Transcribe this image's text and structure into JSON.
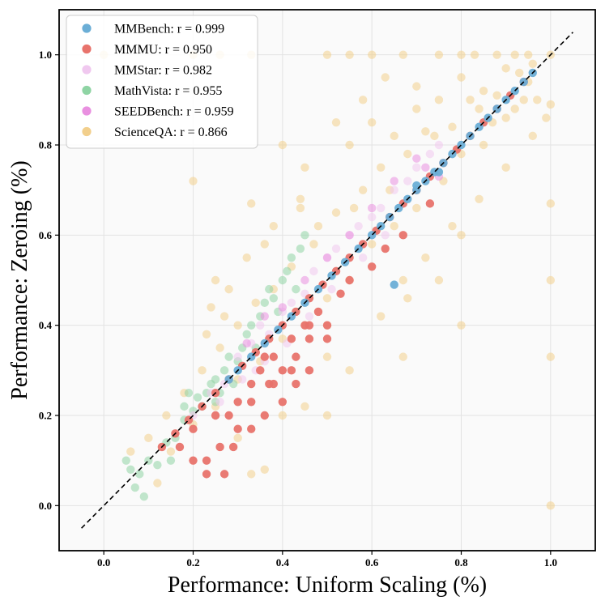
{
  "chart_data": {
    "type": "scatter",
    "title": "",
    "xlabel": "Performance: Uniform Scaling (%)",
    "ylabel": "Performance: Zeroing (%)",
    "xlim": [
      -0.1,
      1.1
    ],
    "ylim": [
      -0.1,
      1.1
    ],
    "xticks": [
      "0.0",
      "0.2",
      "0.4",
      "0.6",
      "0.8",
      "1.0"
    ],
    "yticks": [
      "0.0",
      "0.2",
      "0.4",
      "0.6",
      "0.8",
      "1.0"
    ],
    "grid": true,
    "legend_position": "top-left",
    "reference_line": {
      "style": "dashed",
      "color": "#000000",
      "x": [
        -0.05,
        1.05
      ],
      "y": [
        -0.05,
        1.05
      ]
    },
    "series": [
      {
        "name": "MMBench",
        "label": "MMBench: r = 0.999",
        "r": 0.999,
        "color": "#6baed6",
        "points": [
          [
            0.28,
            0.28
          ],
          [
            0.3,
            0.3
          ],
          [
            0.33,
            0.33
          ],
          [
            0.36,
            0.36
          ],
          [
            0.39,
            0.39
          ],
          [
            0.42,
            0.42
          ],
          [
            0.45,
            0.45
          ],
          [
            0.48,
            0.48
          ],
          [
            0.51,
            0.51
          ],
          [
            0.54,
            0.54
          ],
          [
            0.57,
            0.57
          ],
          [
            0.6,
            0.6
          ],
          [
            0.62,
            0.62
          ],
          [
            0.64,
            0.64
          ],
          [
            0.66,
            0.66
          ],
          [
            0.68,
            0.68
          ],
          [
            0.7,
            0.7
          ],
          [
            0.72,
            0.72
          ],
          [
            0.74,
            0.74
          ],
          [
            0.76,
            0.76
          ],
          [
            0.78,
            0.78
          ],
          [
            0.8,
            0.8
          ],
          [
            0.82,
            0.82
          ],
          [
            0.84,
            0.84
          ],
          [
            0.86,
            0.86
          ],
          [
            0.88,
            0.88
          ],
          [
            0.9,
            0.9
          ],
          [
            0.92,
            0.92
          ],
          [
            0.94,
            0.94
          ],
          [
            0.96,
            0.96
          ],
          [
            0.65,
            0.49
          ],
          [
            0.7,
            0.71
          ],
          [
            0.75,
            0.74
          ]
        ]
      },
      {
        "name": "MMMU",
        "label": "MMMU: r = 0.950",
        "r": 0.95,
        "color": "#e8736c",
        "points": [
          [
            0.13,
            0.13
          ],
          [
            0.16,
            0.16
          ],
          [
            0.19,
            0.19
          ],
          [
            0.22,
            0.22
          ],
          [
            0.25,
            0.25
          ],
          [
            0.28,
            0.28
          ],
          [
            0.31,
            0.31
          ],
          [
            0.34,
            0.34
          ],
          [
            0.37,
            0.37
          ],
          [
            0.4,
            0.4
          ],
          [
            0.43,
            0.43
          ],
          [
            0.46,
            0.46
          ],
          [
            0.49,
            0.49
          ],
          [
            0.52,
            0.52
          ],
          [
            0.55,
            0.55
          ],
          [
            0.58,
            0.58
          ],
          [
            0.61,
            0.61
          ],
          [
            0.64,
            0.64
          ],
          [
            0.67,
            0.67
          ],
          [
            0.7,
            0.7
          ],
          [
            0.73,
            0.73
          ],
          [
            0.76,
            0.76
          ],
          [
            0.79,
            0.79
          ],
          [
            0.82,
            0.82
          ],
          [
            0.85,
            0.85
          ],
          [
            0.88,
            0.88
          ],
          [
            0.91,
            0.91
          ],
          [
            0.94,
            0.94
          ],
          [
            0.17,
            0.13
          ],
          [
            0.2,
            0.17
          ],
          [
            0.23,
            0.1
          ],
          [
            0.25,
            0.2
          ],
          [
            0.26,
            0.13
          ],
          [
            0.28,
            0.2
          ],
          [
            0.3,
            0.23
          ],
          [
            0.3,
            0.17
          ],
          [
            0.33,
            0.23
          ],
          [
            0.33,
            0.27
          ],
          [
            0.33,
            0.17
          ],
          [
            0.35,
            0.3
          ],
          [
            0.36,
            0.2
          ],
          [
            0.37,
            0.27
          ],
          [
            0.38,
            0.33
          ],
          [
            0.4,
            0.3
          ],
          [
            0.4,
            0.23
          ],
          [
            0.42,
            0.37
          ],
          [
            0.43,
            0.33
          ],
          [
            0.43,
            0.27
          ],
          [
            0.45,
            0.4
          ],
          [
            0.46,
            0.3
          ],
          [
            0.46,
            0.37
          ],
          [
            0.48,
            0.43
          ],
          [
            0.5,
            0.4
          ],
          [
            0.5,
            0.37
          ],
          [
            0.53,
            0.47
          ],
          [
            0.55,
            0.5
          ],
          [
            0.6,
            0.53
          ],
          [
            0.63,
            0.57
          ],
          [
            0.67,
            0.6
          ],
          [
            0.73,
            0.67
          ],
          [
            0.29,
            0.13
          ],
          [
            0.23,
            0.07
          ],
          [
            0.27,
            0.07
          ],
          [
            0.2,
            0.1
          ],
          [
            0.38,
            0.27
          ],
          [
            0.42,
            0.3
          ],
          [
            0.46,
            0.4
          ],
          [
            0.36,
            0.33
          ]
        ]
      },
      {
        "name": "MMStar",
        "label": "MMStar: r = 0.982",
        "r": 0.982,
        "color": "#f0c8ef",
        "points": [
          [
            0.2,
            0.2
          ],
          [
            0.24,
            0.25
          ],
          [
            0.27,
            0.27
          ],
          [
            0.3,
            0.33
          ],
          [
            0.33,
            0.36
          ],
          [
            0.35,
            0.4
          ],
          [
            0.37,
            0.38
          ],
          [
            0.4,
            0.43
          ],
          [
            0.42,
            0.45
          ],
          [
            0.45,
            0.47
          ],
          [
            0.47,
            0.52
          ],
          [
            0.5,
            0.55
          ],
          [
            0.52,
            0.57
          ],
          [
            0.55,
            0.6
          ],
          [
            0.57,
            0.62
          ],
          [
            0.6,
            0.64
          ],
          [
            0.62,
            0.66
          ],
          [
            0.65,
            0.7
          ],
          [
            0.68,
            0.72
          ],
          [
            0.7,
            0.75
          ],
          [
            0.73,
            0.78
          ],
          [
            0.75,
            0.8
          ],
          [
            0.31,
            0.28
          ],
          [
            0.36,
            0.32
          ],
          [
            0.41,
            0.36
          ],
          [
            0.46,
            0.42
          ],
          [
            0.51,
            0.48
          ],
          [
            0.58,
            0.55
          ],
          [
            0.63,
            0.6
          ],
          [
            0.26,
            0.23
          ],
          [
            0.34,
            0.3
          ]
        ]
      },
      {
        "name": "MathVista",
        "label": "MathVista: r = 0.955",
        "r": 0.955,
        "color": "#8fd4a4",
        "points": [
          [
            0.08,
            0.07
          ],
          [
            0.1,
            0.1
          ],
          [
            0.12,
            0.09
          ],
          [
            0.14,
            0.14
          ],
          [
            0.16,
            0.15
          ],
          [
            0.18,
            0.19
          ],
          [
            0.2,
            0.21
          ],
          [
            0.21,
            0.24
          ],
          [
            0.22,
            0.22
          ],
          [
            0.23,
            0.25
          ],
          [
            0.24,
            0.27
          ],
          [
            0.25,
            0.28
          ],
          [
            0.26,
            0.25
          ],
          [
            0.27,
            0.3
          ],
          [
            0.28,
            0.33
          ],
          [
            0.3,
            0.32
          ],
          [
            0.31,
            0.35
          ],
          [
            0.32,
            0.38
          ],
          [
            0.33,
            0.4
          ],
          [
            0.35,
            0.42
          ],
          [
            0.36,
            0.45
          ],
          [
            0.37,
            0.48
          ],
          [
            0.38,
            0.46
          ],
          [
            0.4,
            0.5
          ],
          [
            0.41,
            0.52
          ],
          [
            0.42,
            0.55
          ],
          [
            0.44,
            0.57
          ],
          [
            0.45,
            0.6
          ],
          [
            0.05,
            0.1
          ],
          [
            0.06,
            0.08
          ],
          [
            0.07,
            0.04
          ],
          [
            0.09,
            0.02
          ],
          [
            0.15,
            0.1
          ],
          [
            0.18,
            0.22
          ],
          [
            0.19,
            0.25
          ],
          [
            0.25,
            0.23
          ],
          [
            0.29,
            0.27
          ],
          [
            0.34,
            0.35
          ],
          [
            0.39,
            0.43
          ],
          [
            0.43,
            0.48
          ]
        ]
      },
      {
        "name": "SEEDBench",
        "label": "SEEDBench: r = 0.959",
        "r": 0.959,
        "color": "#e990e0",
        "points": [
          [
            0.32,
            0.36
          ],
          [
            0.36,
            0.42
          ],
          [
            0.4,
            0.44
          ],
          [
            0.45,
            0.5
          ],
          [
            0.5,
            0.55
          ],
          [
            0.55,
            0.6
          ],
          [
            0.6,
            0.66
          ],
          [
            0.65,
            0.72
          ],
          [
            0.7,
            0.77
          ],
          [
            0.72,
            0.75
          ],
          [
            0.75,
            0.73
          ]
        ]
      },
      {
        "name": "ScienceQA",
        "label": "ScienceQA: r = 0.866",
        "r": 0.866,
        "color": "#f2cf8c",
        "points": [
          [
            0.0,
            1.0
          ],
          [
            0.2,
            1.0
          ],
          [
            0.26,
            1.0
          ],
          [
            0.33,
            1.0
          ],
          [
            0.5,
            1.0
          ],
          [
            0.55,
            1.0
          ],
          [
            0.6,
            1.0
          ],
          [
            0.67,
            1.0
          ],
          [
            0.75,
            1.0
          ],
          [
            0.8,
            1.0
          ],
          [
            0.83,
            1.0
          ],
          [
            0.88,
            1.0
          ],
          [
            0.92,
            1.0
          ],
          [
            0.95,
            1.0
          ],
          [
            1.0,
            1.0
          ],
          [
            1.0,
            0.89
          ],
          [
            1.0,
            0.67
          ],
          [
            1.0,
            0.5
          ],
          [
            1.0,
            0.33
          ],
          [
            1.0,
            0.0
          ],
          [
            0.5,
            0.33
          ],
          [
            0.5,
            0.4
          ],
          [
            0.5,
            0.2
          ],
          [
            0.67,
            0.33
          ],
          [
            0.67,
            0.5
          ],
          [
            0.75,
            0.5
          ],
          [
            0.8,
            0.4
          ],
          [
            0.8,
            0.6
          ],
          [
            0.4,
            0.2
          ],
          [
            0.33,
            0.07
          ],
          [
            0.2,
            0.72
          ],
          [
            0.25,
            0.5
          ],
          [
            0.33,
            0.67
          ],
          [
            0.4,
            0.8
          ],
          [
            0.45,
            0.75
          ],
          [
            0.55,
            0.8
          ],
          [
            0.6,
            0.85
          ],
          [
            0.65,
            0.82
          ],
          [
            0.7,
            0.88
          ],
          [
            0.75,
            0.9
          ],
          [
            0.8,
            0.95
          ],
          [
            0.85,
            0.92
          ],
          [
            0.9,
            0.97
          ],
          [
            0.82,
            0.9
          ],
          [
            0.87,
            0.85
          ],
          [
            0.92,
            0.88
          ],
          [
            0.95,
            0.94
          ],
          [
            0.97,
            0.9
          ],
          [
            0.72,
            0.83
          ],
          [
            0.68,
            0.78
          ],
          [
            0.62,
            0.75
          ],
          [
            0.58,
            0.7
          ],
          [
            0.52,
            0.65
          ],
          [
            0.47,
            0.58
          ],
          [
            0.42,
            0.53
          ],
          [
            0.38,
            0.48
          ],
          [
            0.34,
            0.45
          ],
          [
            0.3,
            0.4
          ],
          [
            0.26,
            0.35
          ],
          [
            0.22,
            0.3
          ],
          [
            0.18,
            0.25
          ],
          [
            0.14,
            0.2
          ],
          [
            0.1,
            0.15
          ],
          [
            0.06,
            0.12
          ],
          [
            0.24,
            0.44
          ],
          [
            0.28,
            0.48
          ],
          [
            0.36,
            0.58
          ],
          [
            0.44,
            0.68
          ],
          [
            0.48,
            0.62
          ],
          [
            0.56,
            0.66
          ],
          [
            0.64,
            0.7
          ],
          [
            0.74,
            0.82
          ],
          [
            0.78,
            0.84
          ],
          [
            0.84,
            0.88
          ],
          [
            0.88,
            0.91
          ],
          [
            0.93,
            0.96
          ],
          [
            0.96,
            0.98
          ],
          [
            0.6,
            0.58
          ],
          [
            0.65,
            0.62
          ],
          [
            0.7,
            0.66
          ],
          [
            0.76,
            0.72
          ],
          [
            0.8,
            0.78
          ],
          [
            0.85,
            0.8
          ],
          [
            0.9,
            0.86
          ],
          [
            0.94,
            0.9
          ],
          [
            0.55,
            0.5
          ],
          [
            0.5,
            0.46
          ],
          [
            0.45,
            0.4
          ],
          [
            0.4,
            0.37
          ],
          [
            0.35,
            0.32
          ],
          [
            0.3,
            0.28
          ],
          [
            0.25,
            0.22
          ],
          [
            0.2,
            0.18
          ],
          [
            0.15,
            0.12
          ],
          [
            0.12,
            0.05
          ],
          [
            0.36,
            0.08
          ],
          [
            0.3,
            0.15
          ],
          [
            0.45,
            0.22
          ],
          [
            0.55,
            0.3
          ],
          [
            0.62,
            0.42
          ],
          [
            0.68,
            0.46
          ],
          [
            0.72,
            0.55
          ],
          [
            0.78,
            0.62
          ],
          [
            0.84,
            0.68
          ],
          [
            0.9,
            0.75
          ],
          [
            0.96,
            0.82
          ],
          [
            0.99,
            0.86
          ],
          [
            0.58,
            0.9
          ],
          [
            0.52,
            0.85
          ],
          [
            0.63,
            0.95
          ],
          [
            0.7,
            0.93
          ],
          [
            0.44,
            0.66
          ],
          [
            0.38,
            0.62
          ],
          [
            0.32,
            0.55
          ],
          [
            0.27,
            0.42
          ],
          [
            0.23,
            0.38
          ]
        ]
      }
    ]
  }
}
